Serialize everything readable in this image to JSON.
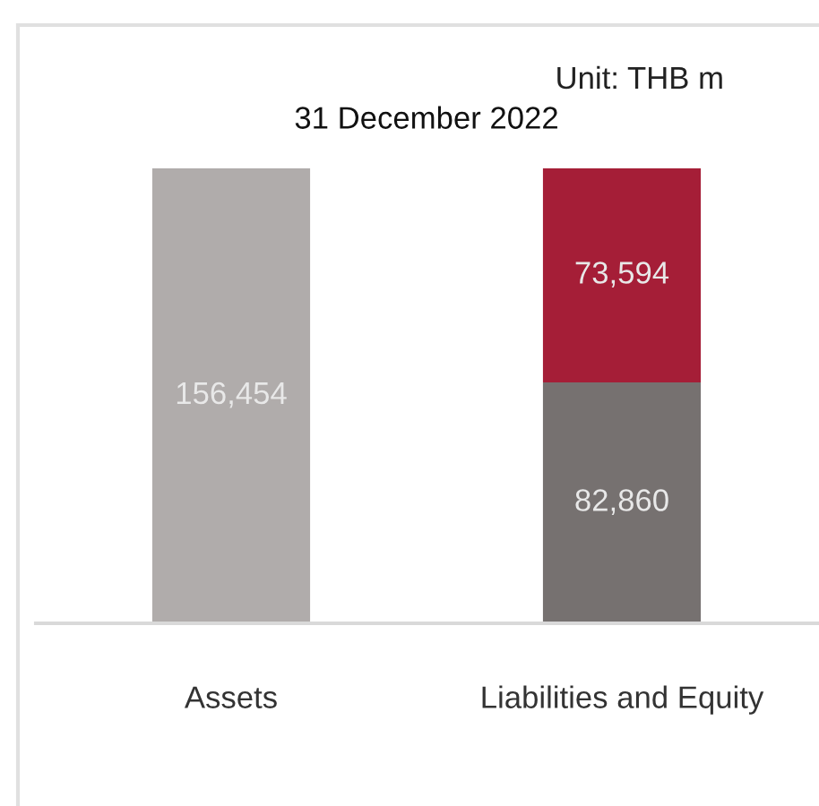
{
  "chart_data": {
    "type": "bar",
    "title": "31 December 2022",
    "annotations": [
      "Unit: THB m"
    ],
    "categories": [
      "Assets",
      "Liabilities and Equity"
    ],
    "stacked": true,
    "tick_labels": "x",
    "series": [
      {
        "colors": [
          "#b0acab",
          "#767170"
        ],
        "values": [
          156454,
          82860
        ],
        "value_labels": [
          "156,454",
          "82,860"
        ]
      },
      {
        "color": "#a51e37",
        "values": [
          null,
          73594
        ],
        "value_labels": [
          null,
          "73,594"
        ]
      }
    ]
  }
}
